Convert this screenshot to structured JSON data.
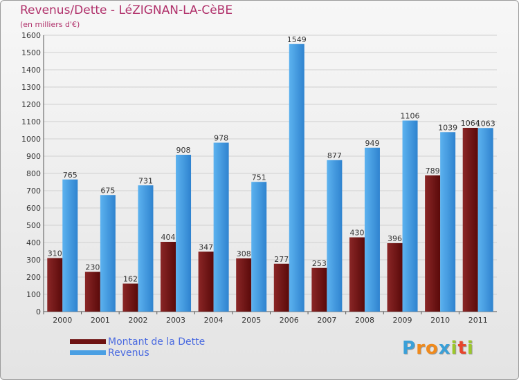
{
  "title": "Revenus/Dette - LéZIGNAN-LA-CèBE",
  "subtitle": "(en milliers d'€)",
  "colors": {
    "dette": "#6e1212",
    "revenus": "#4a9fe3",
    "title": "#b0306a",
    "legend_text": "#4a6ae0"
  },
  "legend": [
    {
      "label": "Montant de la Dette",
      "color": "#6e1212"
    },
    {
      "label": "Revenus",
      "color": "#4a9fe3"
    }
  ],
  "logo": {
    "letters": [
      {
        "char": "P",
        "color": "#3aa0d8"
      },
      {
        "char": "r",
        "color": "#f08a1c"
      },
      {
        "char": "o",
        "color": "#f08a1c"
      },
      {
        "char": "x",
        "color": "#3aa0d8"
      },
      {
        "char": "i",
        "color": "#9cc82a"
      },
      {
        "char": "t",
        "color": "#e8452c"
      },
      {
        "char": "i",
        "color": "#9cc82a"
      }
    ]
  },
  "chart_data": {
    "type": "bar",
    "categories": [
      "2000",
      "2001",
      "2002",
      "2003",
      "2004",
      "2005",
      "2006",
      "2007",
      "2008",
      "2009",
      "2010",
      "2011"
    ],
    "series": [
      {
        "name": "Montant de la Dette",
        "values": [
          310,
          230,
          162,
          404,
          347,
          308,
          277,
          253,
          430,
          396,
          789,
          1064
        ]
      },
      {
        "name": "Revenus",
        "values": [
          765,
          675,
          731,
          908,
          978,
          751,
          1549,
          877,
          949,
          1106,
          1039,
          1063
        ]
      }
    ],
    "data_labels": [
      [
        "310",
        "230",
        "162",
        "404",
        "347",
        "308",
        "277",
        "253",
        "430",
        "396",
        "789",
        "1064"
      ],
      [
        "765",
        "675",
        "731",
        "908",
        "978",
        "751",
        "1549",
        "877",
        "949",
        "1106",
        "1039",
        "1063"
      ]
    ],
    "yticks": [
      "0",
      "100",
      "200",
      "300",
      "400",
      "500",
      "600",
      "700",
      "800",
      "900",
      "1000",
      "1100",
      "1200",
      "1300",
      "1400",
      "1500",
      "1600"
    ],
    "ylim": [
      0,
      1600
    ],
    "grid": true,
    "legend_position": "bottom-left"
  }
}
